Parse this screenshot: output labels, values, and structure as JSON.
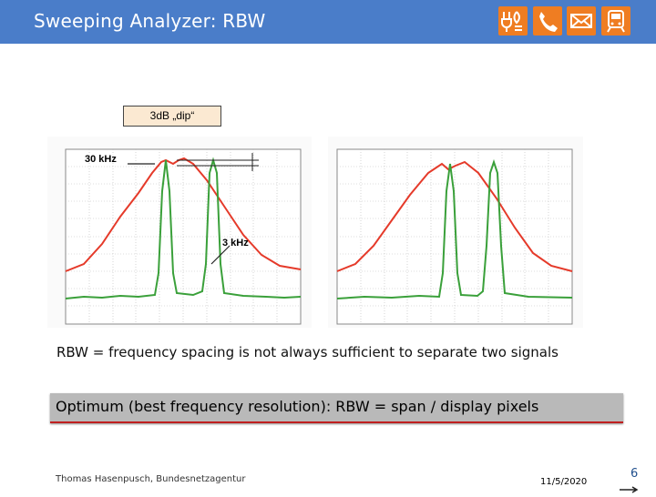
{
  "header": {
    "title": "Sweeping Analyzer: RBW",
    "icons": [
      "plug-icon",
      "phone-icon",
      "mail-icon",
      "train-icon"
    ]
  },
  "figure": {
    "callout": "3dB „dip“",
    "left_labels": {
      "wide": "30 kHz",
      "narrow": "3 kHz"
    }
  },
  "caption": "RBW = frequency spacing is not always sufficient to separate two signals",
  "banner": "Optimum (best frequency resolution): RBW = span / display pixels",
  "footer": {
    "author": "Thomas Hasenpusch, Bundesnetzagentur",
    "date": "11/5/2020",
    "page": "6"
  },
  "colors": {
    "header": "#4a7dc9",
    "accent_icons": "#ef7d22",
    "red_trace": "#e53a2a",
    "green_trace": "#3aa03a"
  }
}
